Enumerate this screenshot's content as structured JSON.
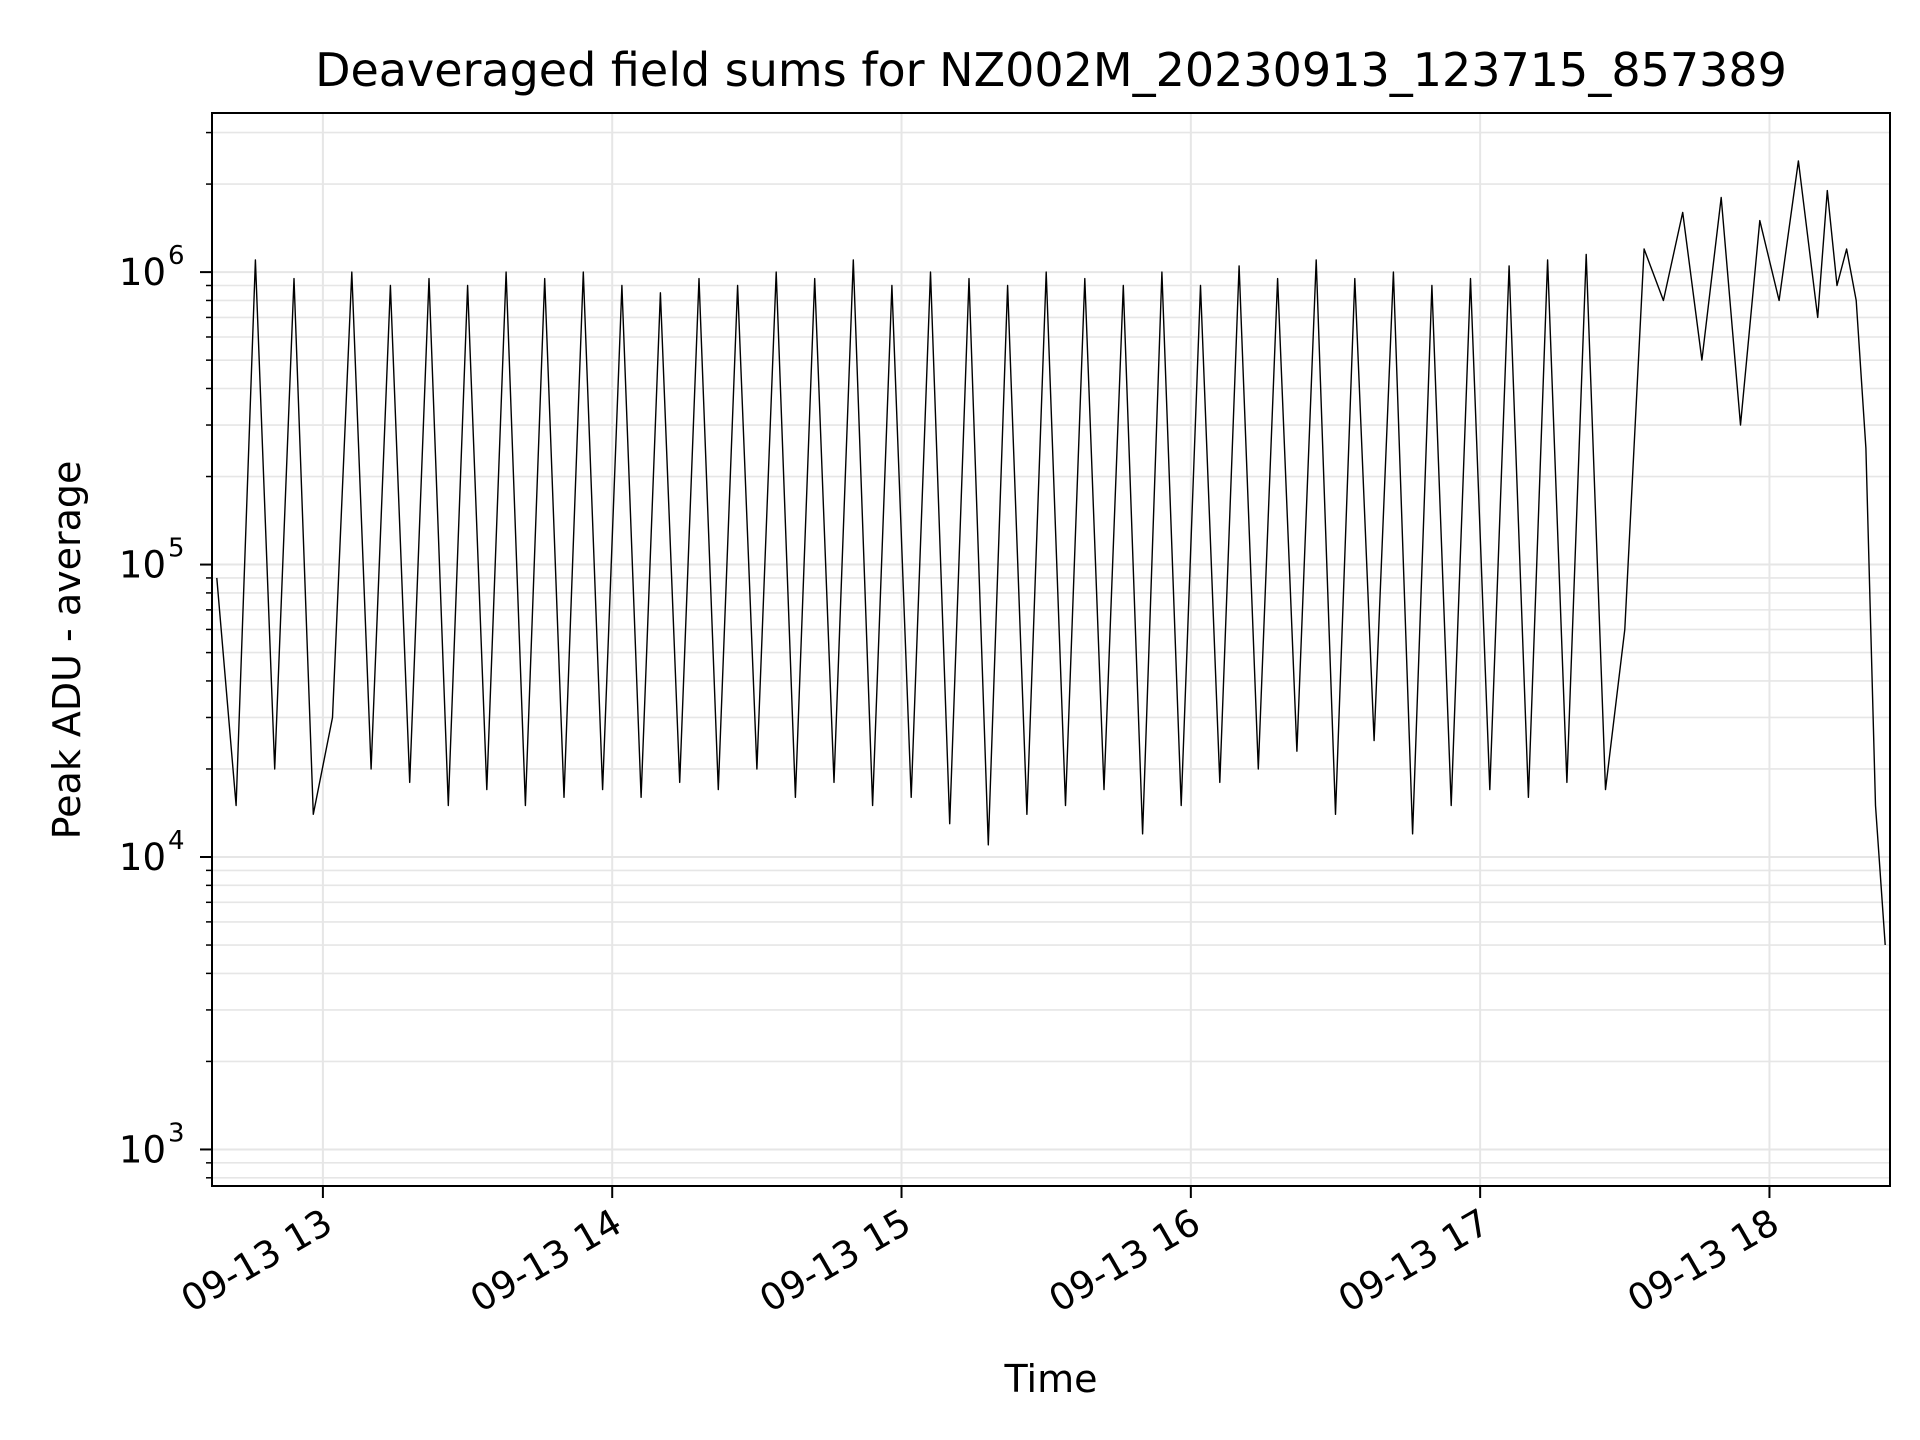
{
  "chart_data": {
    "type": "line",
    "title": "Deaveraged field sums for NZ002M_20230913_123715_857389",
    "xlabel": "Time",
    "ylabel": "Peak ADU - average",
    "y_scale": "log",
    "ylim": [
      750,
      3500000
    ],
    "xlim": [
      "2023-09-13 12:37",
      "2023-09-13 18:25"
    ],
    "grid": true,
    "line_color": "#000000",
    "grid_color": "#e6e6e6",
    "x_ticks": [
      {
        "value": "2023-09-13 13:00",
        "label": "09-13 13"
      },
      {
        "value": "2023-09-13 14:00",
        "label": "09-13 14"
      },
      {
        "value": "2023-09-13 15:00",
        "label": "09-13 15"
      },
      {
        "value": "2023-09-13 16:00",
        "label": "09-13 16"
      },
      {
        "value": "2023-09-13 17:00",
        "label": "09-13 17"
      },
      {
        "value": "2023-09-13 18:00",
        "label": "09-13 18"
      }
    ],
    "y_ticks": [
      {
        "value": 1000,
        "base": "10",
        "exp": "3"
      },
      {
        "value": 10000,
        "base": "10",
        "exp": "4"
      },
      {
        "value": 100000,
        "base": "10",
        "exp": "5"
      },
      {
        "value": 1000000,
        "base": "10",
        "exp": "6"
      }
    ],
    "series": [
      {
        "x": [
          "2023-09-13 12:38",
          "2023-09-13 12:42",
          "2023-09-13 12:46",
          "2023-09-13 12:50",
          "2023-09-13 12:54",
          "2023-09-13 12:58",
          "2023-09-13 13:02",
          "2023-09-13 13:06",
          "2023-09-13 13:10",
          "2023-09-13 13:14",
          "2023-09-13 13:18",
          "2023-09-13 13:22",
          "2023-09-13 13:26",
          "2023-09-13 13:30",
          "2023-09-13 13:34",
          "2023-09-13 13:38",
          "2023-09-13 13:42",
          "2023-09-13 13:46",
          "2023-09-13 13:50",
          "2023-09-13 13:54",
          "2023-09-13 13:58",
          "2023-09-13 14:02",
          "2023-09-13 14:06",
          "2023-09-13 14:10",
          "2023-09-13 14:14",
          "2023-09-13 14:18",
          "2023-09-13 14:22",
          "2023-09-13 14:26",
          "2023-09-13 14:30",
          "2023-09-13 14:34",
          "2023-09-13 14:38",
          "2023-09-13 14:42",
          "2023-09-13 14:46",
          "2023-09-13 14:50",
          "2023-09-13 14:54",
          "2023-09-13 14:58",
          "2023-09-13 15:02",
          "2023-09-13 15:06",
          "2023-09-13 15:10",
          "2023-09-13 15:14",
          "2023-09-13 15:18",
          "2023-09-13 15:22",
          "2023-09-13 15:26",
          "2023-09-13 15:30",
          "2023-09-13 15:34",
          "2023-09-13 15:38",
          "2023-09-13 15:42",
          "2023-09-13 15:46",
          "2023-09-13 15:50",
          "2023-09-13 15:54",
          "2023-09-13 15:58",
          "2023-09-13 16:02",
          "2023-09-13 16:06",
          "2023-09-13 16:10",
          "2023-09-13 16:14",
          "2023-09-13 16:18",
          "2023-09-13 16:22",
          "2023-09-13 16:26",
          "2023-09-13 16:30",
          "2023-09-13 16:34",
          "2023-09-13 16:38",
          "2023-09-13 16:42",
          "2023-09-13 16:46",
          "2023-09-13 16:50",
          "2023-09-13 16:54",
          "2023-09-13 16:58",
          "2023-09-13 17:02",
          "2023-09-13 17:06",
          "2023-09-13 17:10",
          "2023-09-13 17:14",
          "2023-09-13 17:18",
          "2023-09-13 17:22",
          "2023-09-13 17:26",
          "2023-09-13 17:30",
          "2023-09-13 17:34",
          "2023-09-13 17:38",
          "2023-09-13 17:42",
          "2023-09-13 17:46",
          "2023-09-13 17:50",
          "2023-09-13 17:54",
          "2023-09-13 17:58",
          "2023-09-13 18:02",
          "2023-09-13 18:06",
          "2023-09-13 18:10",
          "2023-09-13 18:12",
          "2023-09-13 18:14",
          "2023-09-13 18:16",
          "2023-09-13 18:18",
          "2023-09-13 18:20",
          "2023-09-13 18:22",
          "2023-09-13 18:24"
        ],
        "values": [
          90000,
          15000,
          1100000,
          20000,
          950000,
          14000,
          30000,
          1000000,
          20000,
          900000,
          18000,
          950000,
          15000,
          900000,
          17000,
          1000000,
          15000,
          950000,
          16000,
          1000000,
          17000,
          900000,
          16000,
          850000,
          18000,
          950000,
          17000,
          900000,
          20000,
          1000000,
          16000,
          950000,
          18000,
          1100000,
          15000,
          900000,
          16000,
          1000000,
          13000,
          950000,
          11000,
          900000,
          14000,
          1000000,
          15000,
          950000,
          17000,
          900000,
          12000,
          1000000,
          15000,
          900000,
          18000,
          1050000,
          20000,
          950000,
          23000,
          1100000,
          14000,
          950000,
          25000,
          1000000,
          12000,
          900000,
          15000,
          950000,
          17000,
          1050000,
          16000,
          1100000,
          18000,
          1150000,
          17000,
          60000,
          1200000,
          800000,
          1600000,
          500000,
          1800000,
          300000,
          1500000,
          800000,
          2400000,
          700000,
          1900000,
          900000,
          1200000,
          800000,
          250000,
          15000,
          5000
        ],
        "line_width": 1
      }
    ]
  }
}
